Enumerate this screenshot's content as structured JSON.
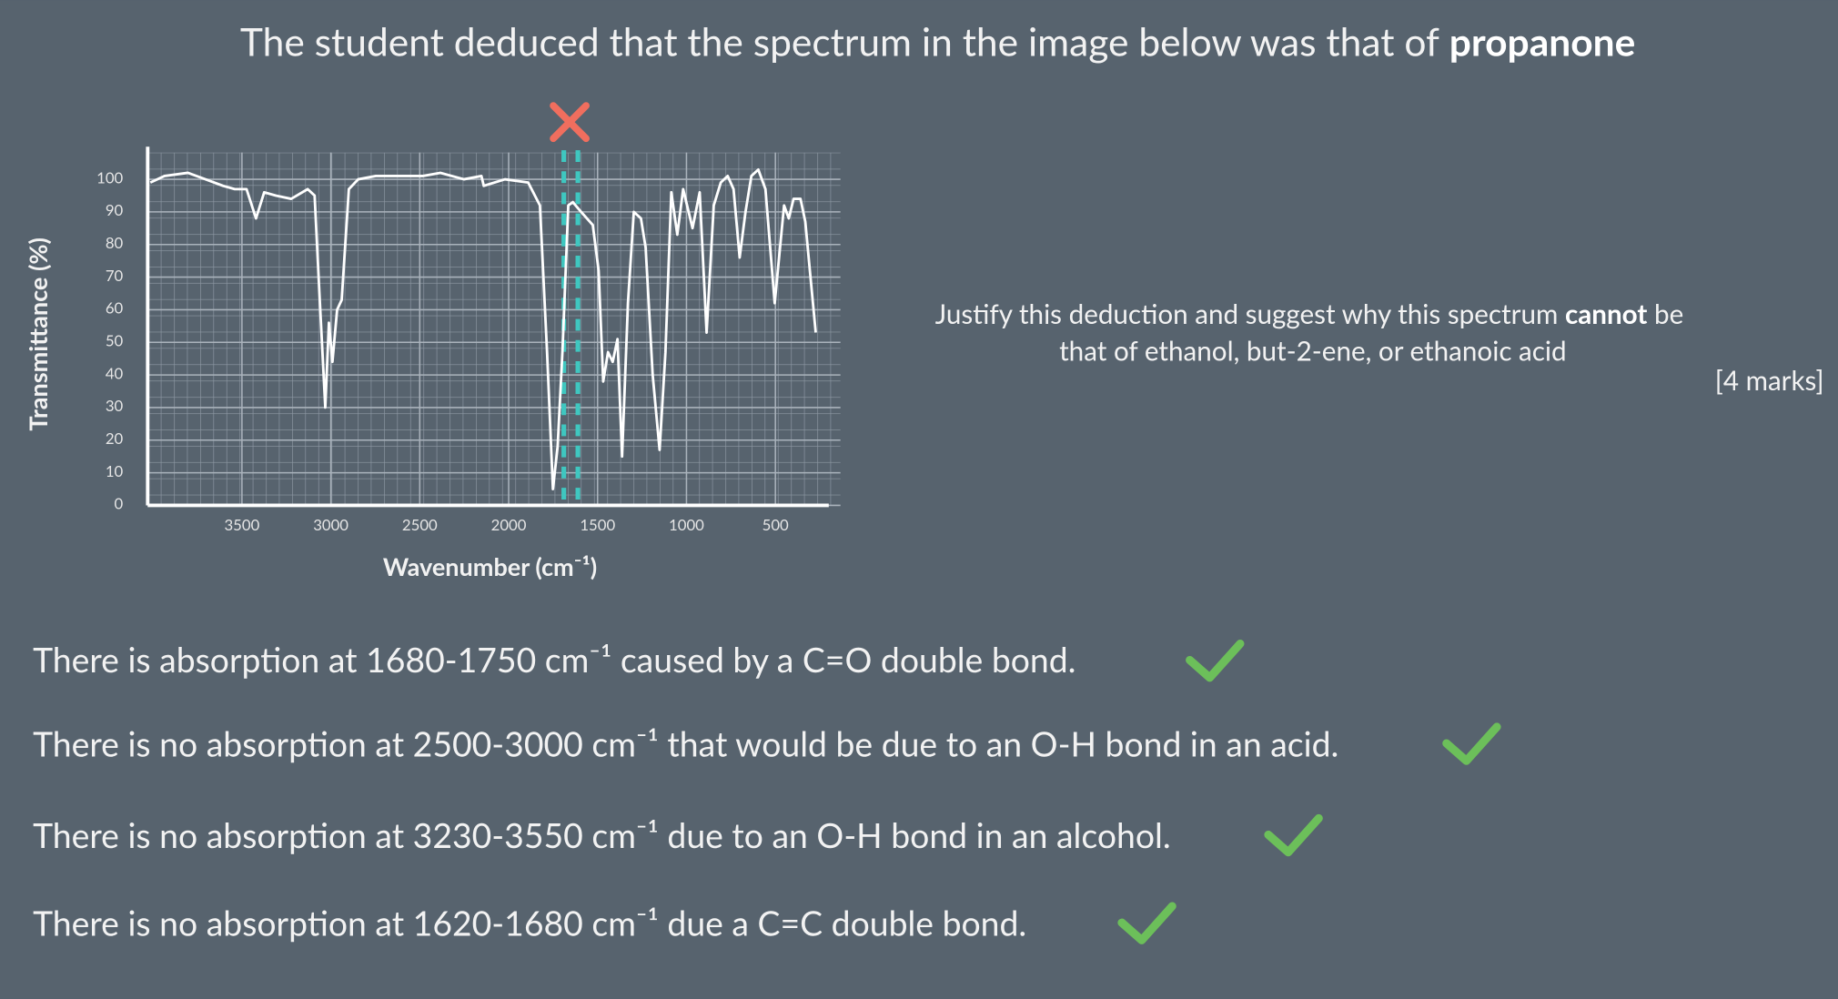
{
  "title": "The student deduced that the spectrum in the image below was that of",
  "title_bold": "propanone",
  "question": {
    "line1_start": "Justify this deduction and suggest why this spectrum",
    "line1_bold": "cannot",
    "line1_end": "be",
    "line2": "that of ethanol, but-2-ene, or ethanoic acid",
    "marks": "[4 marks]"
  },
  "answers": [
    "There is absorption at 1680-1750 cm⁻¹ caused by a C=O double bond.",
    "There is no absorption at 2500-3000 cm⁻¹ that would be due to an O-H bond in an acid.",
    "There is no absorption at 3230-3550 cm⁻¹ due to an O-H bond in an alcohol.",
    "There is no absorption at 1620-1680 cm⁻¹ due a C=C double bond."
  ],
  "chart_data": {
    "type": "line",
    "x_label": "Wavenumber (cm⁻¹)",
    "y_label": "Transmittance (%)",
    "color": "#ffffff",
    "grid": true,
    "xlim": [
      4030,
      200
    ],
    "ylim": [
      0,
      110
    ],
    "xticks": [
      3500,
      3000,
      2500,
      2000,
      1500,
      1000,
      500
    ],
    "yticks": [
      0,
      10,
      20,
      30,
      40,
      50,
      60,
      70,
      80,
      90,
      100
    ],
    "x": [
      4015,
      3936,
      3804,
      3705,
      3606,
      3540,
      3474,
      3421,
      3375,
      3309,
      3223,
      3130,
      3091,
      3064,
      3031,
      3011,
      2991,
      2965,
      2939,
      2899,
      2846,
      2747,
      2483,
      2384,
      2252,
      2153,
      2140,
      2021,
      1890,
      1824,
      1784,
      1751,
      1725,
      1698,
      1665,
      1639,
      1593,
      1527,
      1494,
      1468,
      1441,
      1415,
      1388,
      1362,
      1329,
      1296,
      1256,
      1230,
      1190,
      1151,
      1118,
      1085,
      1052,
      1019,
      966,
      926,
      887,
      847,
      807,
      768,
      735,
      701,
      668,
      635,
      596,
      556,
      504,
      451,
      425,
      398,
      359,
      332,
      306,
      273
    ],
    "values": [
      99,
      101,
      102,
      100,
      98,
      97,
      97,
      88,
      96,
      95,
      94,
      97,
      95,
      65,
      30,
      56,
      44,
      60,
      63,
      97,
      100,
      101,
      101,
      102,
      100,
      101,
      98,
      100,
      99,
      92,
      47,
      5,
      18,
      47,
      92,
      93,
      90,
      86,
      72,
      38,
      47,
      44,
      51,
      15,
      62,
      90,
      88,
      79,
      40,
      17,
      47,
      96,
      83,
      97,
      85,
      96,
      53,
      92,
      99,
      101,
      97,
      76,
      90,
      101,
      103,
      97,
      62,
      92,
      88,
      94,
      94,
      87,
      72,
      53
    ]
  }
}
